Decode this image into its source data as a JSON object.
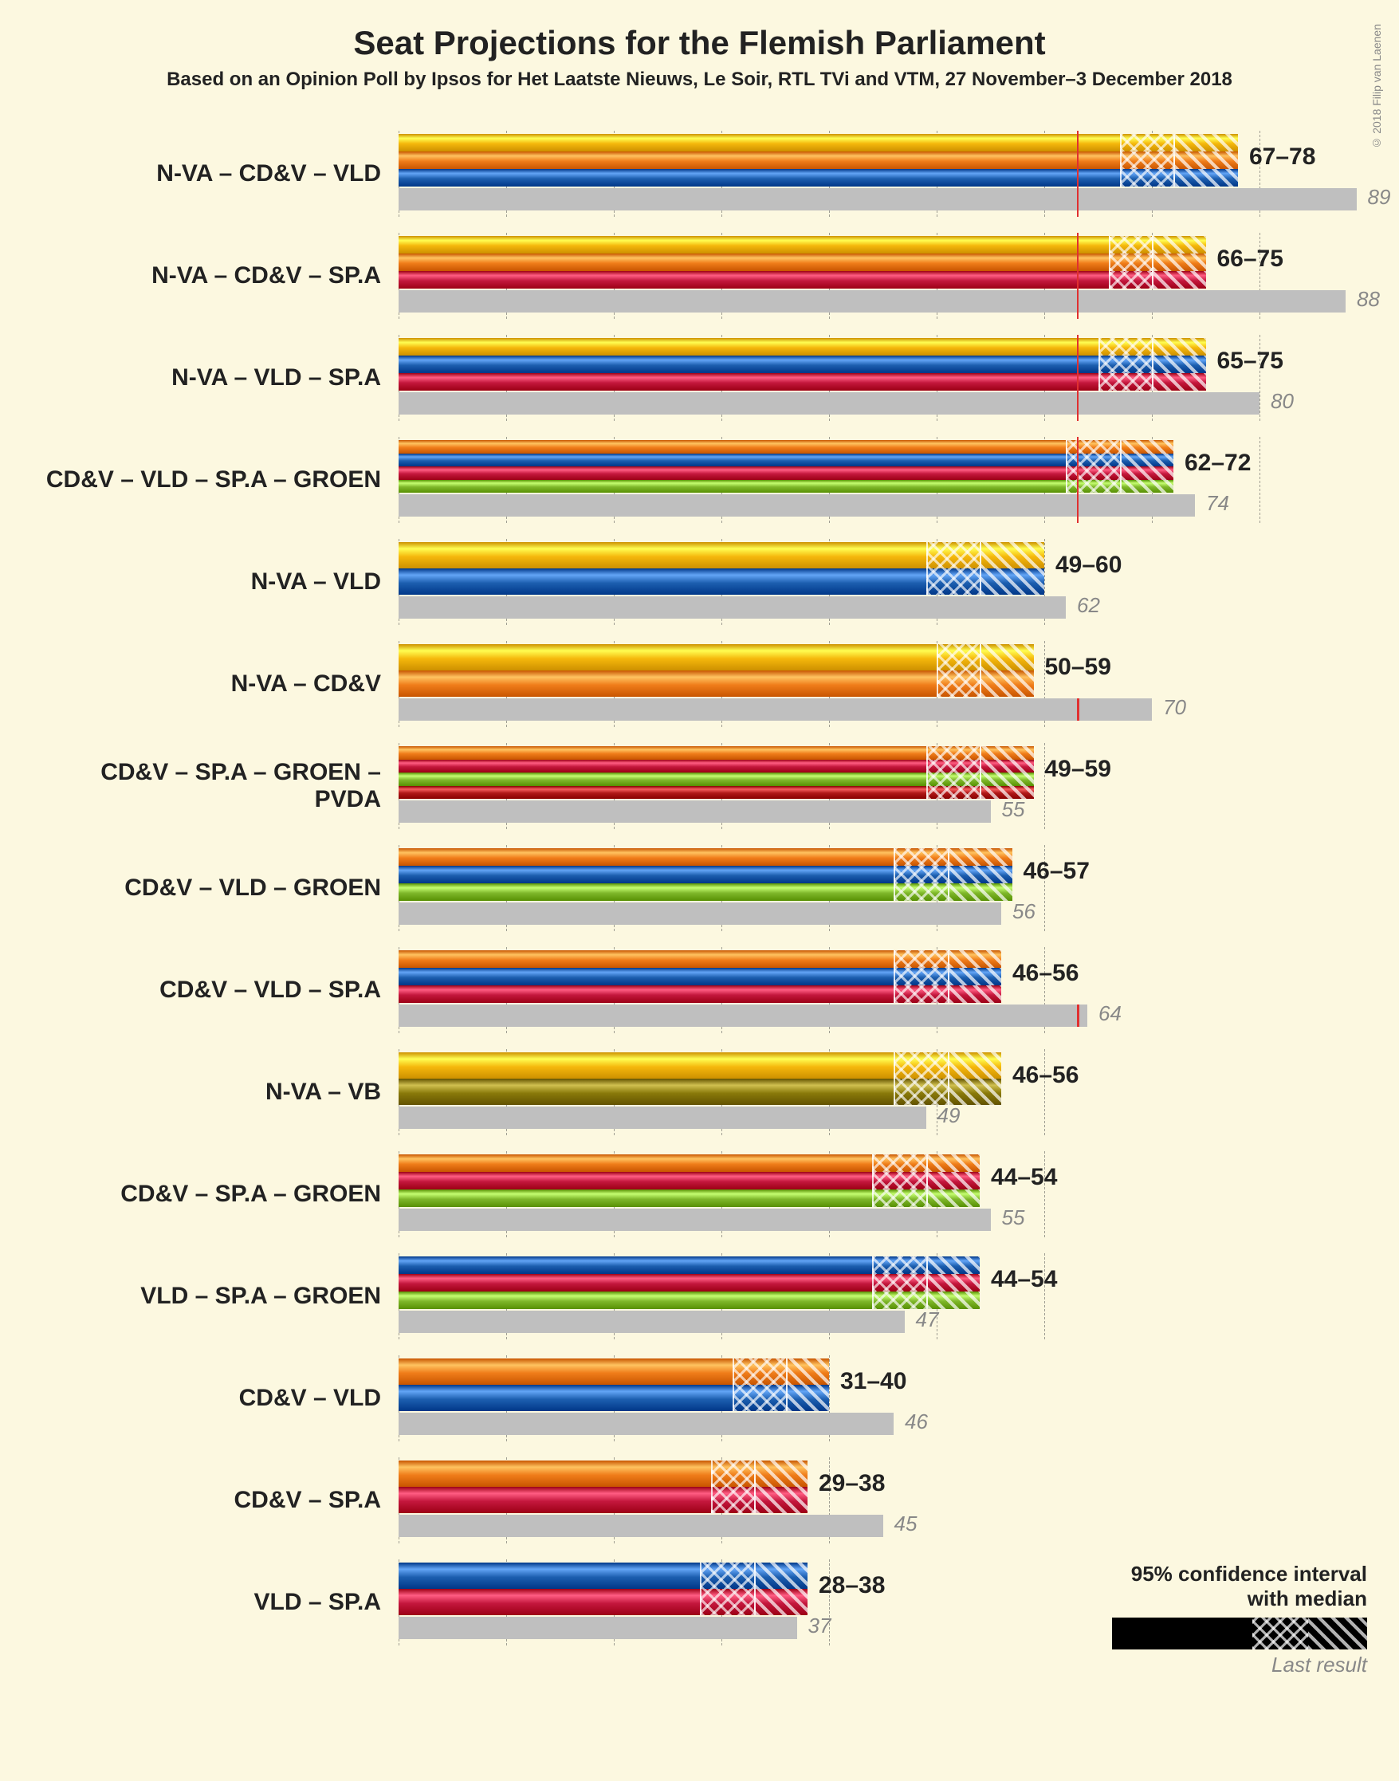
{
  "title": "Seat Projections for the Flemish Parliament",
  "subtitle": "Based on an Opinion Poll by Ipsos for Het Laatste Nieuws, Le Soir, RTL TVi and VTM, 27 November–3 December 2018",
  "copyright": "© 2018 Filip van Laenen",
  "background_color": "#fcf8e0",
  "axis": {
    "max": 90,
    "tick_step": 10,
    "majority": 63,
    "grid_color": "#555555",
    "grey_bar_color": "#bfbfbf",
    "majority_color": "#e03030"
  },
  "party_colors": {
    "NVA": "#f5b80c",
    "CDV": "#f07d1a",
    "VLD": "#1d5fb0",
    "SPA": "#c4173d",
    "GROEN": "#7fb82b",
    "PVDA": "#b01818",
    "VB": "#8a7a0a"
  },
  "legend": {
    "line1": "95% confidence interval",
    "line2": "with median",
    "last_result": "Last result"
  },
  "coalitions": [
    {
      "label": "N-VA – CD&V – VLD",
      "parties": [
        "NVA",
        "CDV",
        "VLD"
      ],
      "low": 67,
      "median": 72,
      "high": 78,
      "last": 89
    },
    {
      "label": "N-VA – CD&V – SP.A",
      "parties": [
        "NVA",
        "CDV",
        "SPA"
      ],
      "low": 66,
      "median": 70,
      "high": 75,
      "last": 88
    },
    {
      "label": "N-VA – VLD – SP.A",
      "parties": [
        "NVA",
        "VLD",
        "SPA"
      ],
      "low": 65,
      "median": 70,
      "high": 75,
      "last": 80
    },
    {
      "label": "CD&V – VLD – SP.A – GROEN",
      "parties": [
        "CDV",
        "VLD",
        "SPA",
        "GROEN"
      ],
      "low": 62,
      "median": 67,
      "high": 72,
      "last": 74
    },
    {
      "label": "N-VA – VLD",
      "parties": [
        "NVA",
        "VLD"
      ],
      "low": 49,
      "median": 54,
      "high": 60,
      "last": 62
    },
    {
      "label": "N-VA – CD&V",
      "parties": [
        "NVA",
        "CDV"
      ],
      "low": 50,
      "median": 54,
      "high": 59,
      "last": 70
    },
    {
      "label": "CD&V – SP.A – GROEN – PVDA",
      "parties": [
        "CDV",
        "SPA",
        "GROEN",
        "PVDA"
      ],
      "low": 49,
      "median": 54,
      "high": 59,
      "last": 55
    },
    {
      "label": "CD&V – VLD – GROEN",
      "parties": [
        "CDV",
        "VLD",
        "GROEN"
      ],
      "low": 46,
      "median": 51,
      "high": 57,
      "last": 56
    },
    {
      "label": "CD&V – VLD – SP.A",
      "parties": [
        "CDV",
        "VLD",
        "SPA"
      ],
      "low": 46,
      "median": 51,
      "high": 56,
      "last": 64
    },
    {
      "label": "N-VA – VB",
      "parties": [
        "NVA",
        "VB"
      ],
      "low": 46,
      "median": 51,
      "high": 56,
      "last": 49
    },
    {
      "label": "CD&V – SP.A – GROEN",
      "parties": [
        "CDV",
        "SPA",
        "GROEN"
      ],
      "low": 44,
      "median": 49,
      "high": 54,
      "last": 55
    },
    {
      "label": "VLD – SP.A – GROEN",
      "parties": [
        "VLD",
        "SPA",
        "GROEN"
      ],
      "low": 44,
      "median": 49,
      "high": 54,
      "last": 47
    },
    {
      "label": "CD&V – VLD",
      "parties": [
        "CDV",
        "VLD"
      ],
      "low": 31,
      "median": 36,
      "high": 40,
      "last": 46
    },
    {
      "label": "CD&V – SP.A",
      "parties": [
        "CDV",
        "SPA"
      ],
      "low": 29,
      "median": 33,
      "high": 38,
      "last": 45
    },
    {
      "label": "VLD – SP.A",
      "parties": [
        "VLD",
        "SPA"
      ],
      "low": 28,
      "median": 33,
      "high": 38,
      "last": 37
    }
  ]
}
